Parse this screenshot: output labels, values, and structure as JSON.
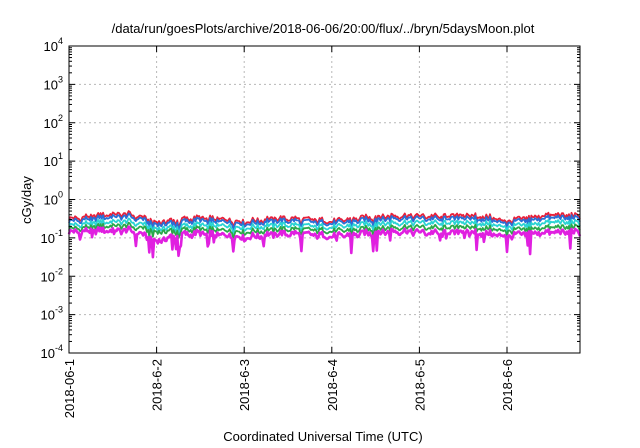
{
  "chart_data": {
    "type": "line",
    "title": "/data/run/goesPlots/archive/2018-06-06/20:00/flux/../bryn/5daysMoon.plot",
    "xlabel": "Coordinated Universal Time (UTC)",
    "ylabel": "cGy/day",
    "yscale": "log",
    "ylim": [
      0.0001,
      10000
    ],
    "y_ticks": [
      {
        "base": "10",
        "exp": "-4",
        "value": 0.0001
      },
      {
        "base": "10",
        "exp": "-3",
        "value": 0.001
      },
      {
        "base": "10",
        "exp": "-2",
        "value": 0.01
      },
      {
        "base": "10",
        "exp": "-1",
        "value": 0.1
      },
      {
        "base": "10",
        "exp": "0",
        "value": 1
      },
      {
        "base": "10",
        "exp": "1",
        "value": 10
      },
      {
        "base": "10",
        "exp": "2",
        "value": 100
      },
      {
        "base": "10",
        "exp": "3",
        "value": 1000
      },
      {
        "base": "10",
        "exp": "4",
        "value": 10000
      }
    ],
    "xlim": [
      "2018-06-01T00:00",
      "2018-06-06T20:00"
    ],
    "x_ticks": [
      {
        "label": "2018-06-1",
        "value": "2018-06-01T00:00"
      },
      {
        "label": "2018-6-2",
        "value": "2018-06-02T00:00"
      },
      {
        "label": "2018-6-3",
        "value": "2018-06-03T00:00"
      },
      {
        "label": "2018-6-4",
        "value": "2018-06-04T00:00"
      },
      {
        "label": "2018-6-5",
        "value": "2018-06-05T00:00"
      },
      {
        "label": "2018-6-6",
        "value": "2018-06-06T00:00"
      }
    ],
    "grid": true,
    "legend": "none",
    "sample_times": [
      "2018-06-01T00:00",
      "2018-06-01T06:00",
      "2018-06-01T12:00",
      "2018-06-01T18:00",
      "2018-06-02T00:00",
      "2018-06-02T06:00",
      "2018-06-02T12:00",
      "2018-06-02T18:00",
      "2018-06-03T00:00",
      "2018-06-03T06:00",
      "2018-06-03T12:00",
      "2018-06-03T18:00",
      "2018-06-04T00:00",
      "2018-06-04T06:00",
      "2018-06-04T12:00",
      "2018-06-04T18:00",
      "2018-06-05T00:00",
      "2018-06-05T06:00",
      "2018-06-05T12:00",
      "2018-06-05T18:00",
      "2018-06-06T00:00",
      "2018-06-06T06:00",
      "2018-06-06T12:00",
      "2018-06-06T18:00",
      "2018-06-06T20:00"
    ],
    "series": [
      {
        "color": "#e8203a",
        "values": [
          0.31,
          0.36,
          0.42,
          0.4,
          0.25,
          0.3,
          0.33,
          0.31,
          0.26,
          0.31,
          0.32,
          0.3,
          0.27,
          0.31,
          0.36,
          0.38,
          0.37,
          0.36,
          0.4,
          0.36,
          0.27,
          0.34,
          0.4,
          0.38,
          0.37
        ]
      },
      {
        "color": "#2a6fd6",
        "values": [
          0.27,
          0.31,
          0.36,
          0.35,
          0.22,
          0.26,
          0.29,
          0.27,
          0.23,
          0.27,
          0.28,
          0.26,
          0.24,
          0.27,
          0.31,
          0.33,
          0.32,
          0.31,
          0.34,
          0.31,
          0.24,
          0.29,
          0.34,
          0.33,
          0.32
        ]
      },
      {
        "color": "#2ad4d4",
        "values": [
          0.21,
          0.24,
          0.27,
          0.26,
          0.17,
          0.2,
          0.22,
          0.21,
          0.18,
          0.21,
          0.22,
          0.2,
          0.19,
          0.21,
          0.24,
          0.25,
          0.25,
          0.24,
          0.26,
          0.24,
          0.19,
          0.22,
          0.26,
          0.25,
          0.25
        ]
      },
      {
        "color": "#2aa84a",
        "values": [
          0.17,
          0.19,
          0.21,
          0.2,
          0.14,
          0.16,
          0.17,
          0.16,
          0.14,
          0.16,
          0.17,
          0.16,
          0.15,
          0.16,
          0.18,
          0.19,
          0.19,
          0.18,
          0.2,
          0.18,
          0.15,
          0.17,
          0.19,
          0.19,
          0.19
        ]
      },
      {
        "color": "#e020e0",
        "values": [
          0.14,
          0.15,
          0.16,
          0.15,
          0.08,
          0.12,
          0.13,
          0.12,
          0.1,
          0.12,
          0.13,
          0.12,
          0.11,
          0.12,
          0.14,
          0.15,
          0.14,
          0.13,
          0.15,
          0.13,
          0.11,
          0.13,
          0.14,
          0.14,
          0.14
        ]
      }
    ]
  }
}
